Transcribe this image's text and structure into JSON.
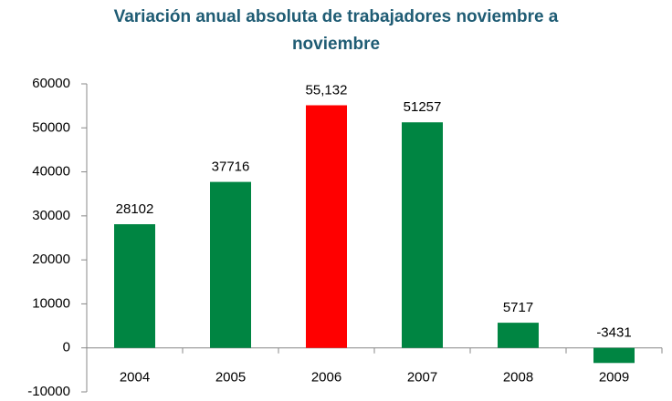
{
  "chart_data": {
    "type": "bar",
    "title": "Variación anual absoluta de trabajadores noviembre a noviembre",
    "categories": [
      "2004",
      "2005",
      "2006",
      "2007",
      "2008",
      "2009"
    ],
    "values": [
      28102,
      37716,
      55132,
      51257,
      5717,
      -3431
    ],
    "value_labels": [
      "28102",
      "37716",
      "55,132",
      "51257",
      "5717",
      "-3431"
    ],
    "colors": [
      "#008542",
      "#008542",
      "#ff0000",
      "#008542",
      "#008542",
      "#008542"
    ],
    "ylim": [
      -10000,
      60000
    ],
    "yticks": [
      -10000,
      0,
      10000,
      20000,
      30000,
      40000,
      50000,
      60000
    ],
    "grid": false
  }
}
